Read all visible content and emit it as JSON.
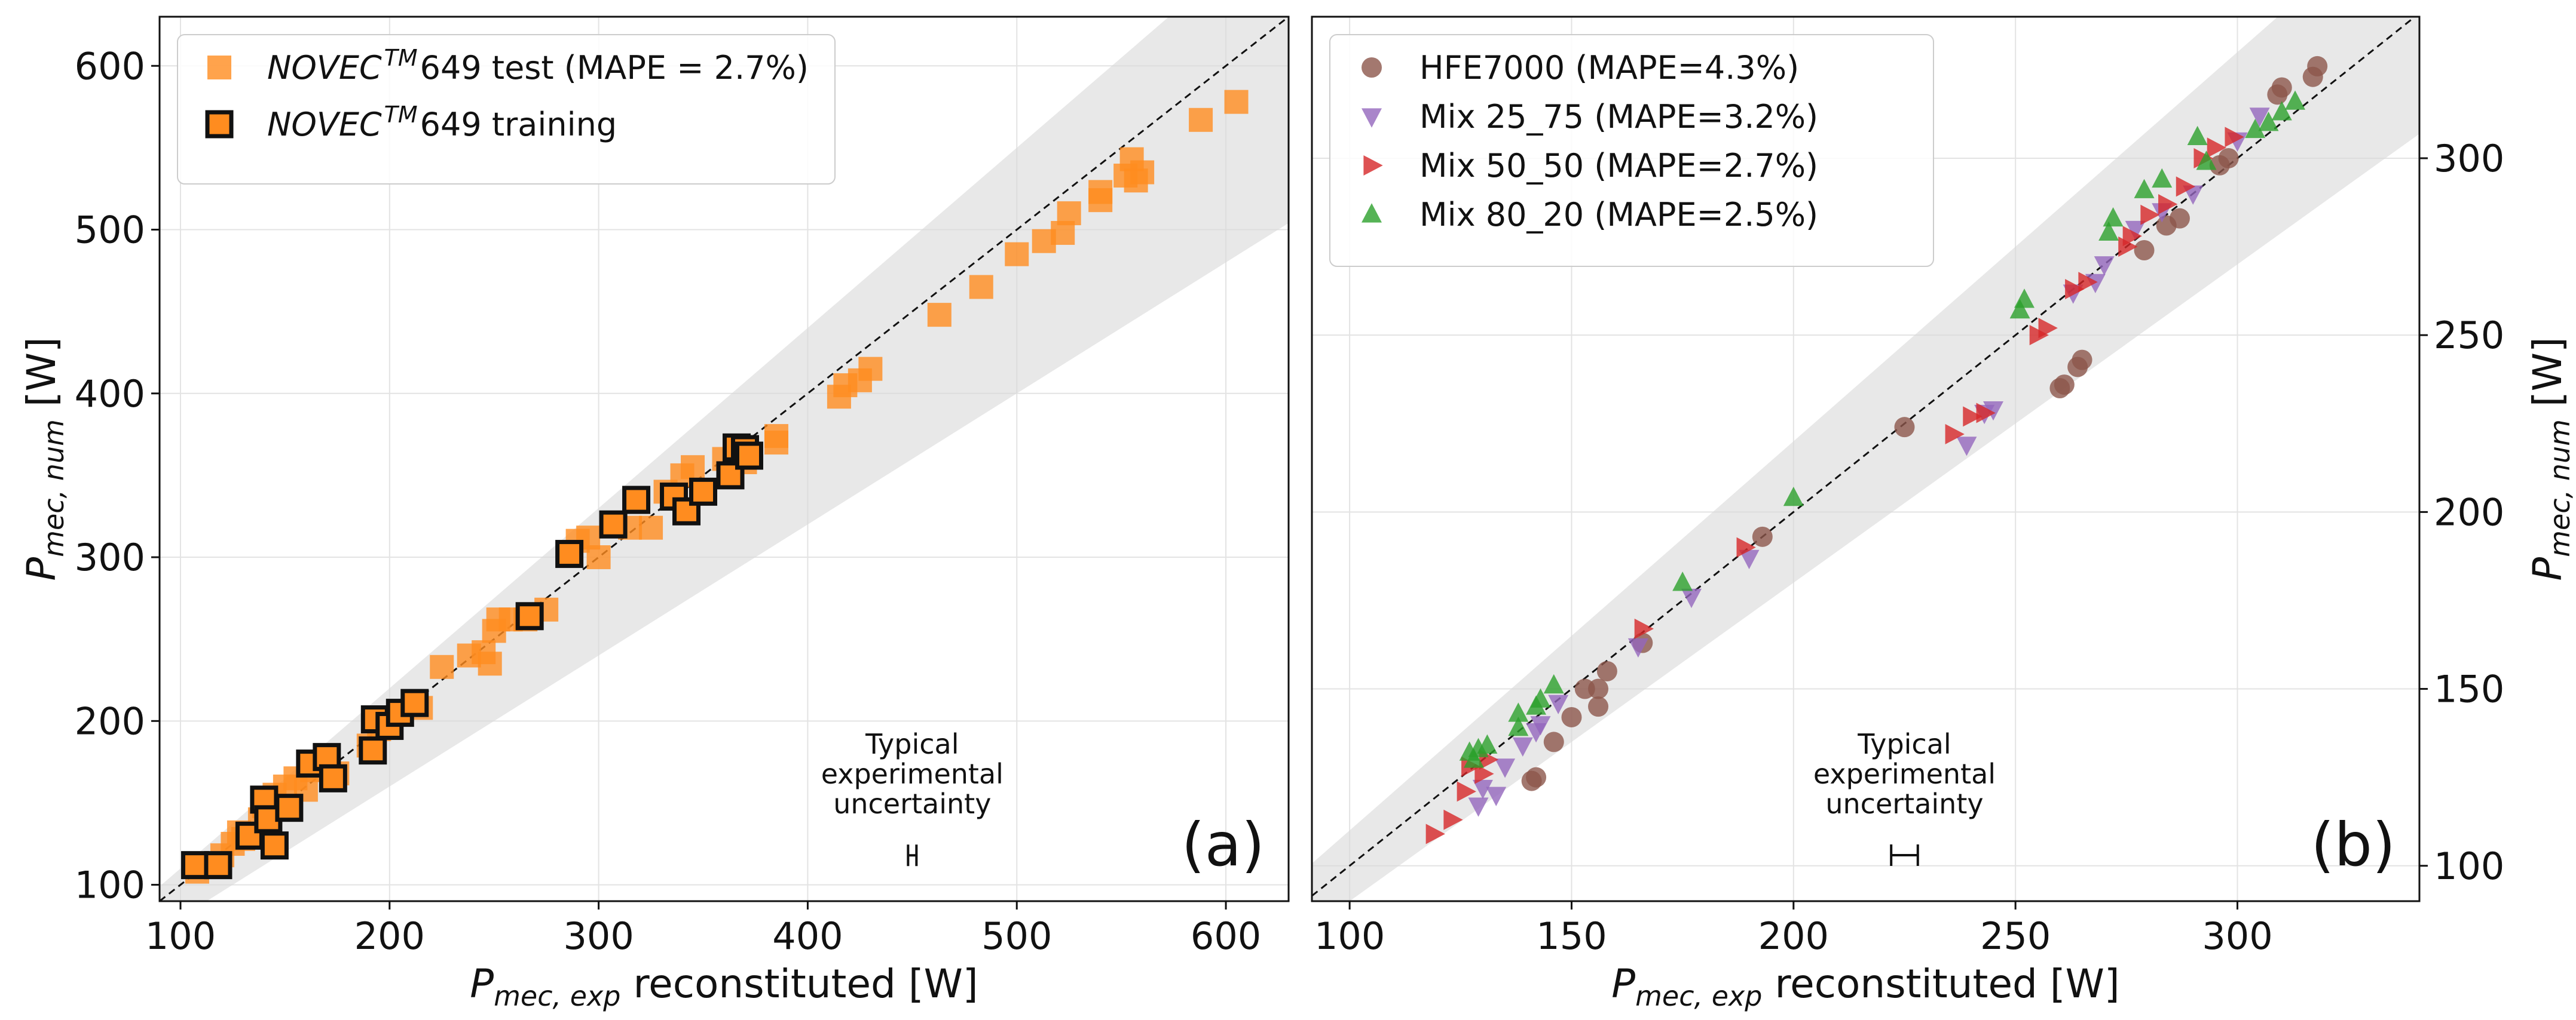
{
  "chart_data": [
    {
      "type": "scatter",
      "panel_label": "(a)",
      "xlabel": {
        "symbol": "P",
        "subscript": "mec, exp",
        "rest": " reconstituted [W]"
      },
      "ylabel": {
        "symbol": "P",
        "subscript": "mec, num",
        "rest": " [W]"
      },
      "xlim": [
        90,
        630
      ],
      "ylim": [
        90,
        630
      ],
      "xticks": [
        100,
        200,
        300,
        400,
        500,
        600
      ],
      "yticks": [
        100,
        200,
        300,
        400,
        500,
        600
      ],
      "yaxis_side": "left",
      "grid": true,
      "legend_position": "top-left",
      "band": {
        "upper_factor": 1.1,
        "lower_factor": 0.8
      },
      "identity_line": true,
      "annotation": {
        "lines": [
          "Typical",
          "experimental",
          "uncertainty"
        ],
        "errorbar_x": 450,
        "errorbar_y": 118,
        "errorbar_halfwidth": 2
      },
      "series": [
        {
          "name_pre": "NOVEC",
          "name_sup": "TM",
          "name_post": "649 test (MAPE = 2.7%)",
          "marker": "square",
          "color": "#ff8c1f",
          "edge": "none",
          "points": [
            [
              108,
              108
            ],
            [
              112,
              113
            ],
            [
              120,
              118
            ],
            [
              125,
              125
            ],
            [
              128,
              132
            ],
            [
              130,
              128
            ],
            [
              138,
              140
            ],
            [
              140,
              148
            ],
            [
              145,
              155
            ],
            [
              150,
              160
            ],
            [
              155,
              165
            ],
            [
              160,
              158
            ],
            [
              163,
              170
            ],
            [
              168,
              175
            ],
            [
              175,
              168
            ],
            [
              190,
              185
            ],
            [
              195,
              195
            ],
            [
              200,
              200
            ],
            [
              205,
              205
            ],
            [
              215,
              208
            ],
            [
              225,
              233
            ],
            [
              238,
              240
            ],
            [
              245,
              242
            ],
            [
              248,
              235
            ],
            [
              250,
              255
            ],
            [
              252,
              262
            ],
            [
              258,
              262
            ],
            [
              265,
              262
            ],
            [
              275,
              268
            ],
            [
              290,
              310
            ],
            [
              295,
              312
            ],
            [
              300,
              300
            ],
            [
              315,
              318
            ],
            [
              325,
              318
            ],
            [
              332,
              340
            ],
            [
              340,
              350
            ],
            [
              345,
              355
            ],
            [
              360,
              360
            ],
            [
              370,
              358
            ],
            [
              385,
              370
            ],
            [
              385,
              374
            ],
            [
              415,
              398
            ],
            [
              418,
              405
            ],
            [
              425,
              408
            ],
            [
              430,
              415
            ],
            [
              463,
              448
            ],
            [
              483,
              465
            ],
            [
              500,
              485
            ],
            [
              513,
              493
            ],
            [
              522,
              498
            ],
            [
              525,
              510
            ],
            [
              540,
              518
            ],
            [
              540,
              523
            ],
            [
              552,
              533
            ],
            [
              555,
              543
            ],
            [
              557,
              530
            ],
            [
              560,
              535
            ],
            [
              588,
              567
            ],
            [
              605,
              578
            ]
          ]
        },
        {
          "name_pre": "NOVEC",
          "name_sup": "TM",
          "name_post": "649 training",
          "marker": "square",
          "color": "#ff8c1f",
          "edge": "#111111",
          "points": [
            [
              107,
              112
            ],
            [
              118,
              112
            ],
            [
              133,
              130
            ],
            [
              140,
              152
            ],
            [
              142,
              140
            ],
            [
              145,
              124
            ],
            [
              152,
              147
            ],
            [
              162,
              174
            ],
            [
              170,
              178
            ],
            [
              173,
              165
            ],
            [
              192,
              182
            ],
            [
              193,
              201
            ],
            [
              200,
              197
            ],
            [
              205,
              205
            ],
            [
              212,
              211
            ],
            [
              267,
              264
            ],
            [
              286,
              302
            ],
            [
              307,
              320
            ],
            [
              318,
              335
            ],
            [
              336,
              337
            ],
            [
              342,
              328
            ],
            [
              350,
              340
            ],
            [
              363,
              350
            ],
            [
              366,
              367
            ],
            [
              370,
              366
            ],
            [
              372,
              362
            ]
          ]
        }
      ]
    },
    {
      "type": "scatter",
      "panel_label": "(b)",
      "xlabel": {
        "symbol": "P",
        "subscript": "mec, exp",
        "rest": " reconstituted [W]"
      },
      "ylabel": {
        "symbol": "P",
        "subscript": "mec, num",
        "rest": " [W]"
      },
      "xlim": [
        91.5,
        341
      ],
      "ylim": [
        90,
        340
      ],
      "xticks": [
        100,
        150,
        200,
        250,
        300
      ],
      "yticks": [
        100,
        150,
        200,
        250,
        300
      ],
      "yaxis_side": "right",
      "grid": true,
      "legend_position": "top-left",
      "band": {
        "upper_factor": 1.1,
        "lower_factor": 0.9
      },
      "identity_line": true,
      "annotation": {
        "lines": [
          "Typical",
          "experimental",
          "uncertainty"
        ],
        "errorbar_x": 225,
        "errorbar_y": 103,
        "errorbar_halfwidth": 3
      },
      "series": [
        {
          "name_pre": "HFE7000 (MAPE=4.3%)",
          "marker": "circle",
          "color": "#8c564b",
          "points": [
            [
              318,
              326
            ],
            [
              317,
              323
            ],
            [
              309,
              318
            ],
            [
              310,
              320
            ],
            [
              298,
              300
            ],
            [
              296,
              298
            ],
            [
              287,
              283
            ],
            [
              284,
              281
            ],
            [
              279,
              274
            ],
            [
              265,
              243
            ],
            [
              264,
              241
            ],
            [
              261,
              236
            ],
            [
              260,
              235
            ],
            [
              225,
              224
            ],
            [
              193,
              193
            ],
            [
              166,
              163
            ],
            [
              158,
              155
            ],
            [
              156,
              150
            ],
            [
              156,
              145
            ],
            [
              153,
              150
            ],
            [
              150,
              142
            ],
            [
              146,
              135
            ],
            [
              142,
              125
            ],
            [
              141,
              124
            ]
          ]
        },
        {
          "name_pre": "Mix 25_75 (MAPE=3.2%)",
          "marker": "triangle-down",
          "color": "#9467bd",
          "points": [
            [
              305,
              312
            ],
            [
              300,
              305
            ],
            [
              290,
              290
            ],
            [
              283,
              285
            ],
            [
              277,
              280
            ],
            [
              270,
              270
            ],
            [
              268,
              265
            ],
            [
              263,
              262
            ],
            [
              245,
              229
            ],
            [
              243,
              228
            ],
            [
              239,
              219
            ],
            [
              190,
              187
            ],
            [
              177,
              176
            ],
            [
              165,
              162
            ],
            [
              147,
              146
            ],
            [
              143,
              140
            ],
            [
              142,
              138
            ],
            [
              139,
              134
            ],
            [
              135,
              128
            ],
            [
              133,
              120
            ],
            [
              130,
              122
            ],
            [
              129,
              117
            ]
          ]
        },
        {
          "name_pre": "Mix 50_50 (MAPE=2.7%)",
          "marker": "triangle-right",
          "color": "#d62728",
          "points": [
            [
              299,
              306
            ],
            [
              295,
              303
            ],
            [
              292,
              300
            ],
            [
              288,
              292
            ],
            [
              284,
              287
            ],
            [
              280,
              284
            ],
            [
              276,
              278
            ],
            [
              275,
              275
            ],
            [
              266,
              265
            ],
            [
              263,
              263
            ],
            [
              257,
              252
            ],
            [
              255,
              250
            ],
            [
              243,
              228
            ],
            [
              240,
              227
            ],
            [
              236,
              222
            ],
            [
              189,
              190
            ],
            [
              166,
              167
            ],
            [
              131,
              130
            ],
            [
              130,
              126
            ],
            [
              127,
              128
            ],
            [
              126,
              121
            ],
            [
              123,
              113
            ],
            [
              119,
              109
            ]
          ]
        },
        {
          "name_pre": "Mix 80_20 (MAPE=2.5%)",
          "marker": "triangle-up",
          "color": "#2ca02c",
          "points": [
            [
              313,
              316
            ],
            [
              310,
              313
            ],
            [
              307,
              310
            ],
            [
              304,
              308
            ],
            [
              293,
              299
            ],
            [
              291,
              306
            ],
            [
              283,
              294
            ],
            [
              279,
              291
            ],
            [
              272,
              283
            ],
            [
              271,
              279
            ],
            [
              252,
              260
            ],
            [
              251,
              257
            ],
            [
              200,
              204
            ],
            [
              175,
              180
            ],
            [
              146,
              151
            ],
            [
              143,
              147
            ],
            [
              142,
              145
            ],
            [
              138,
              143
            ],
            [
              138,
              139
            ],
            [
              131,
              134
            ],
            [
              129,
              133
            ],
            [
              127,
              132
            ],
            [
              128,
              130
            ]
          ]
        }
      ]
    }
  ]
}
